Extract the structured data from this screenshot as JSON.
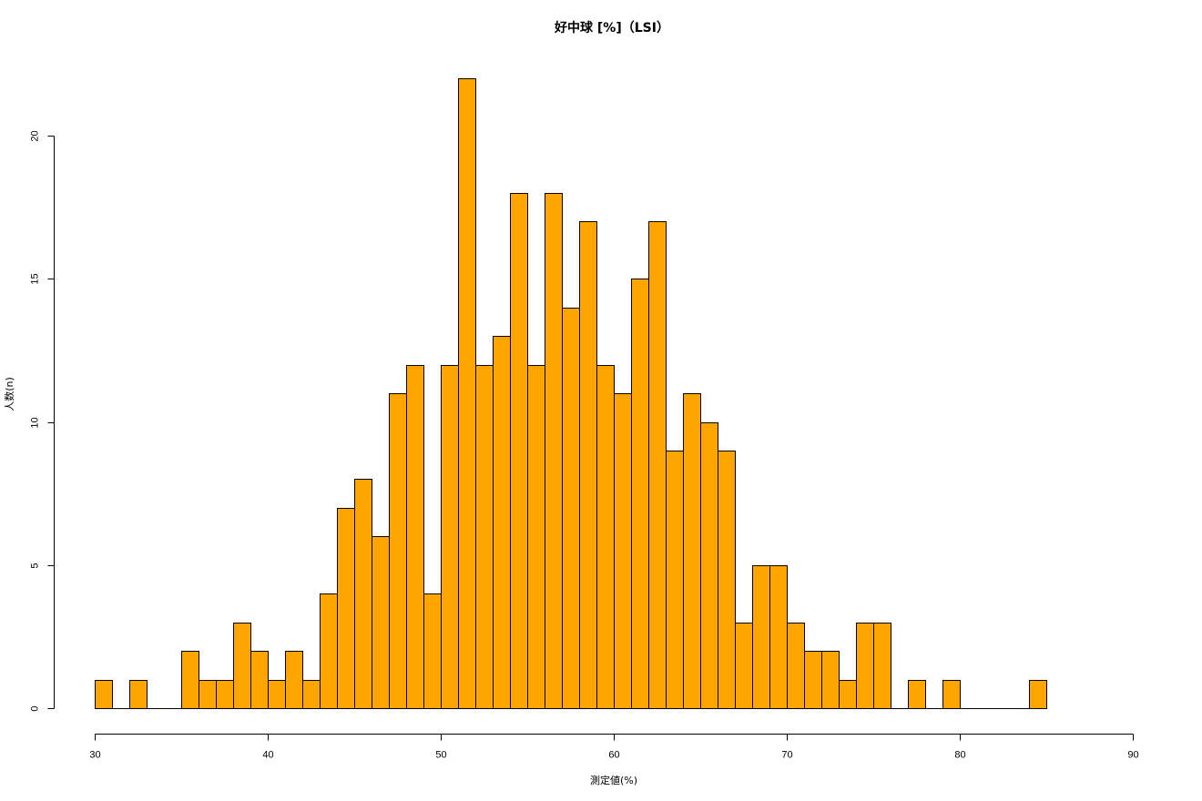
{
  "chart_data": {
    "type": "bar",
    "title": "好中球 [%]（LSI）",
    "xlabel": "測定値(%)",
    "ylabel": "人数(n)",
    "xlim": [
      30,
      90
    ],
    "ylim": [
      0,
      22
    ],
    "x_ticks": [
      30,
      40,
      50,
      60,
      70,
      80,
      90
    ],
    "y_ticks": [
      0,
      5,
      10,
      15,
      20
    ],
    "bin_start": 30,
    "bin_width": 1,
    "values": [
      1,
      0,
      1,
      0,
      0,
      2,
      1,
      1,
      3,
      2,
      1,
      2,
      1,
      4,
      7,
      8,
      6,
      11,
      12,
      4,
      12,
      22,
      12,
      13,
      18,
      12,
      18,
      14,
      17,
      12,
      11,
      15,
      17,
      9,
      11,
      10,
      9,
      3,
      5,
      5,
      3,
      2,
      2,
      1,
      3,
      3,
      0,
      1,
      0,
      1,
      0,
      0,
      0,
      0,
      1
    ],
    "bar_color": "#FFA500",
    "grid": false,
    "legend": "none"
  }
}
